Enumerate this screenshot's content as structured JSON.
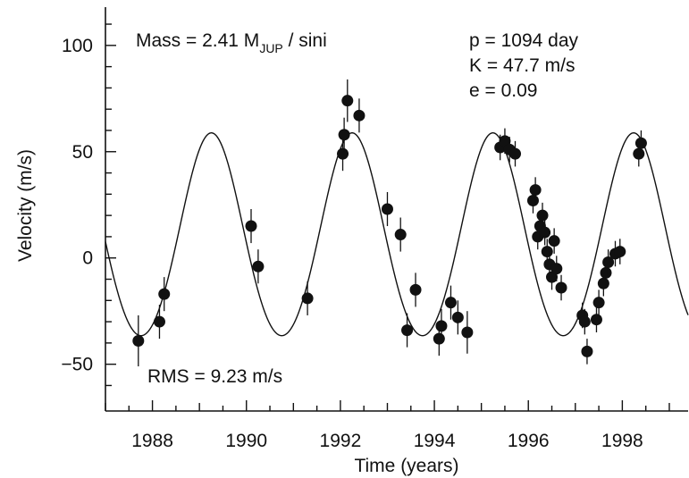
{
  "chart_data": {
    "type": "scatter",
    "title": "",
    "xlabel": "Time (years)",
    "ylabel": "Velocity (m/s)",
    "xlim": [
      1987,
      1999.4
    ],
    "ylim": [
      -72,
      118
    ],
    "x_ticks": [
      1988,
      1990,
      1992,
      1994,
      1996,
      1998
    ],
    "x_tick_labels": [
      "1988",
      "1990",
      "1992",
      "1994",
      "1996",
      "1998"
    ],
    "y_ticks": [
      -50,
      0,
      50,
      100
    ],
    "y_tick_labels": [
      "−50",
      "0",
      "50",
      "100"
    ],
    "annotations": {
      "mass_prefix": "Mass = 2.41 M",
      "mass_sub": "JUP",
      "mass_suffix": " / sini",
      "period": "p = 1094 day",
      "amplitude": "K = 47.7 m/s",
      "eccentricity": "e = 0.09",
      "rms": "RMS = 9.23 m/s"
    },
    "model": {
      "period_days": 1094,
      "K": 47.7,
      "e": 0.09,
      "offset": 9,
      "peak_epoch": 1992.25
    },
    "series": [
      {
        "points": [
          {
            "x": 1987.7,
            "y": -39,
            "err": 12
          },
          {
            "x": 1988.15,
            "y": -30,
            "err": 8
          },
          {
            "x": 1988.25,
            "y": -17,
            "err": 8
          },
          {
            "x": 1990.1,
            "y": 15,
            "err": 8
          },
          {
            "x": 1990.25,
            "y": -4,
            "err": 8
          },
          {
            "x": 1991.3,
            "y": -19,
            "err": 8
          },
          {
            "x": 1992.05,
            "y": 49,
            "err": 8
          },
          {
            "x": 1992.08,
            "y": 58,
            "err": 8
          },
          {
            "x": 1992.15,
            "y": 74,
            "err": 10
          },
          {
            "x": 1992.4,
            "y": 67,
            "err": 8
          },
          {
            "x": 1993.0,
            "y": 23,
            "err": 8
          },
          {
            "x": 1993.28,
            "y": 11,
            "err": 8
          },
          {
            "x": 1993.42,
            "y": -34,
            "err": 8
          },
          {
            "x": 1993.6,
            "y": -15,
            "err": 8
          },
          {
            "x": 1994.1,
            "y": -38,
            "err": 8
          },
          {
            "x": 1994.15,
            "y": -32,
            "err": 8
          },
          {
            "x": 1994.35,
            "y": -21,
            "err": 8
          },
          {
            "x": 1994.5,
            "y": -28,
            "err": 8
          },
          {
            "x": 1994.7,
            "y": -35,
            "err": 10
          },
          {
            "x": 1995.4,
            "y": 52,
            "err": 6
          },
          {
            "x": 1995.5,
            "y": 55,
            "err": 6
          },
          {
            "x": 1995.6,
            "y": 51,
            "err": 6
          },
          {
            "x": 1995.72,
            "y": 49,
            "err": 6
          },
          {
            "x": 1996.1,
            "y": 27,
            "err": 6
          },
          {
            "x": 1996.15,
            "y": 32,
            "err": 6
          },
          {
            "x": 1996.2,
            "y": 10,
            "err": 6
          },
          {
            "x": 1996.25,
            "y": 15,
            "err": 6
          },
          {
            "x": 1996.3,
            "y": 20,
            "err": 6
          },
          {
            "x": 1996.35,
            "y": 12,
            "err": 6
          },
          {
            "x": 1996.4,
            "y": 3,
            "err": 6
          },
          {
            "x": 1996.45,
            "y": -3,
            "err": 6
          },
          {
            "x": 1996.5,
            "y": -9,
            "err": 6
          },
          {
            "x": 1996.55,
            "y": 8,
            "err": 6
          },
          {
            "x": 1996.6,
            "y": -5,
            "err": 6
          },
          {
            "x": 1996.7,
            "y": -14,
            "err": 6
          },
          {
            "x": 1997.15,
            "y": -27,
            "err": 6
          },
          {
            "x": 1997.2,
            "y": -30,
            "err": 6
          },
          {
            "x": 1997.25,
            "y": -44,
            "err": 6
          },
          {
            "x": 1997.45,
            "y": -29,
            "err": 6
          },
          {
            "x": 1997.5,
            "y": -21,
            "err": 6
          },
          {
            "x": 1997.6,
            "y": -12,
            "err": 6
          },
          {
            "x": 1997.65,
            "y": -7,
            "err": 6
          },
          {
            "x": 1997.7,
            "y": -2,
            "err": 6
          },
          {
            "x": 1997.85,
            "y": 2,
            "err": 6
          },
          {
            "x": 1997.95,
            "y": 3,
            "err": 6
          },
          {
            "x": 1998.35,
            "y": 49,
            "err": 6
          },
          {
            "x": 1998.4,
            "y": 54,
            "err": 6
          }
        ]
      }
    ]
  }
}
